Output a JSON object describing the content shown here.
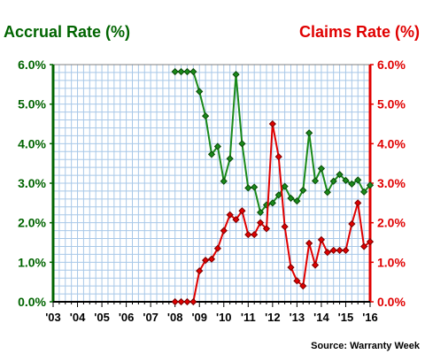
{
  "chart_data": {
    "type": "line",
    "left_axis_title": "Accrual Rate (%)",
    "right_axis_title": "Claims Rate (%)",
    "source": "Source: Warranty Week",
    "x_tick_labels": [
      "'03",
      "'04",
      "'05",
      "'06",
      "'07",
      "'08",
      "'09",
      "'10",
      "'11",
      "'12",
      "'13",
      "'14",
      "'15",
      "'16"
    ],
    "y_left_ticks": [
      "0.0%",
      "1.0%",
      "2.0%",
      "3.0%",
      "4.0%",
      "5.0%",
      "6.0%"
    ],
    "y_right_ticks": [
      "0.0%",
      "1.0%",
      "2.0%",
      "3.0%",
      "4.0%",
      "5.0%",
      "6.0%"
    ],
    "ylim": [
      0,
      6
    ],
    "xlim": [
      2003,
      2016
    ],
    "grid": true,
    "colors": {
      "accrual": "#1a8a1a",
      "claims": "#e00000",
      "left_axis": "#006400",
      "right_axis": "#e00000",
      "grid": "#a8c8e8",
      "plot_border": "#808080"
    },
    "series": [
      {
        "name": "Accrual Rate (%)",
        "axis": "left",
        "x": [
          2008.0,
          2008.25,
          2008.5,
          2008.75,
          2009.0,
          2009.25,
          2009.5,
          2009.75,
          2010.0,
          2010.25,
          2010.5,
          2010.75,
          2011.0,
          2011.25,
          2011.5,
          2011.75,
          2012.0,
          2012.25,
          2012.5,
          2012.75,
          2013.0,
          2013.25,
          2013.5,
          2013.75,
          2014.0,
          2014.25,
          2014.5,
          2014.75,
          2015.0,
          2015.25,
          2015.5,
          2015.75,
          2016.0
        ],
        "values": [
          5.82,
          5.82,
          5.82,
          5.82,
          5.32,
          4.7,
          3.73,
          3.93,
          3.05,
          3.62,
          5.75,
          4.0,
          2.88,
          2.9,
          2.26,
          2.45,
          2.5,
          2.7,
          2.92,
          2.62,
          2.55,
          2.82,
          4.27,
          3.06,
          3.37,
          2.77,
          3.05,
          3.22,
          3.07,
          2.98,
          3.08,
          2.78,
          2.95
        ]
      },
      {
        "name": "Claims Rate (%)",
        "axis": "right",
        "x": [
          2008.0,
          2008.25,
          2008.5,
          2008.75,
          2009.0,
          2009.25,
          2009.5,
          2009.75,
          2010.0,
          2010.25,
          2010.5,
          2010.75,
          2011.0,
          2011.25,
          2011.5,
          2011.75,
          2012.0,
          2012.25,
          2012.5,
          2012.75,
          2013.0,
          2013.25,
          2013.5,
          2013.75,
          2014.0,
          2014.25,
          2014.5,
          2014.75,
          2015.0,
          2015.25,
          2015.5,
          2015.75,
          2016.0
        ],
        "values": [
          0.0,
          0.0,
          0.0,
          0.0,
          0.78,
          1.05,
          1.08,
          1.35,
          1.8,
          2.2,
          2.08,
          2.3,
          1.7,
          1.7,
          2.0,
          1.85,
          4.5,
          3.67,
          1.9,
          0.87,
          0.53,
          0.4,
          1.48,
          0.93,
          1.57,
          1.25,
          1.3,
          1.3,
          1.3,
          1.97,
          2.5,
          1.4,
          1.52
        ]
      }
    ]
  }
}
